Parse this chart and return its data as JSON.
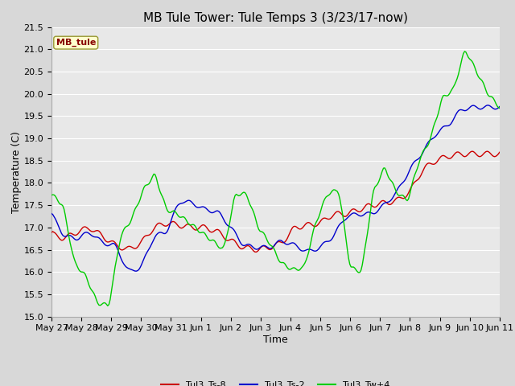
{
  "title": "MB Tule Tower: Tule Temps 3 (3/23/17-now)",
  "xlabel": "Time",
  "ylabel": "Temperature (C)",
  "ylim": [
    15.0,
    21.5
  ],
  "yticks": [
    15.0,
    15.5,
    16.0,
    16.5,
    17.0,
    17.5,
    18.0,
    18.5,
    19.0,
    19.5,
    20.0,
    20.5,
    21.0,
    21.5
  ],
  "xtick_labels": [
    "May 27",
    "May 28",
    "May 29",
    "May 30",
    "May 31",
    "Jun 1",
    "Jun 2",
    "Jun 3",
    "Jun 4",
    "Jun 5",
    "Jun 6",
    "Jun 7",
    "Jun 8",
    "Jun 9",
    "Jun 10",
    "Jun 11"
  ],
  "line_colors": {
    "Tul3_Ts-8": "#cc0000",
    "Tul3_Ts-2": "#0000cc",
    "Tul3_Tw+4": "#00cc00"
  },
  "legend_label": "MB_tule",
  "legend_box_facecolor": "#ffffcc",
  "legend_box_edgecolor": "#999933",
  "fig_facecolor": "#d8d8d8",
  "plot_facecolor": "#e8e8e8",
  "grid_color": "#ffffff",
  "title_fontsize": 11,
  "axis_label_fontsize": 9,
  "tick_fontsize": 8,
  "legend_fontsize": 8,
  "n_days": 15,
  "red_ctrl": [
    16.85,
    16.75,
    16.9,
    17.0,
    16.8,
    16.6,
    16.5,
    16.65,
    17.0,
    17.1,
    17.05,
    17.0,
    17.0,
    16.9,
    16.7,
    16.55,
    16.5,
    16.55,
    16.65,
    17.0,
    17.05,
    17.1,
    17.3,
    17.3,
    17.4,
    17.5,
    17.55,
    17.6,
    17.8,
    18.3,
    18.5,
    18.6,
    18.65,
    18.65,
    18.65,
    18.65
  ],
  "blue_ctrl": [
    17.3,
    16.8,
    16.75,
    16.9,
    16.65,
    16.6,
    16.0,
    16.1,
    16.8,
    16.9,
    17.6,
    17.55,
    17.4,
    17.35,
    17.0,
    16.6,
    16.55,
    16.55,
    16.7,
    16.6,
    16.45,
    16.55,
    16.8,
    17.25,
    17.3,
    17.3,
    17.5,
    17.8,
    18.3,
    18.7,
    19.1,
    19.3,
    19.65,
    19.7,
    19.7,
    19.7
  ],
  "green_ctrl": [
    17.75,
    17.5,
    16.2,
    15.9,
    15.3,
    15.25,
    16.8,
    17.2,
    17.85,
    18.2,
    17.4,
    17.3,
    17.1,
    16.9,
    16.7,
    16.5,
    17.75,
    17.75,
    17.0,
    16.65,
    16.2,
    16.05,
    16.1,
    17.1,
    17.75,
    17.85,
    16.1,
    16.0,
    17.8,
    18.35,
    17.8,
    17.6,
    18.5,
    19.0,
    19.9,
    20.1,
    21.0,
    20.5,
    20.0,
    19.7
  ]
}
